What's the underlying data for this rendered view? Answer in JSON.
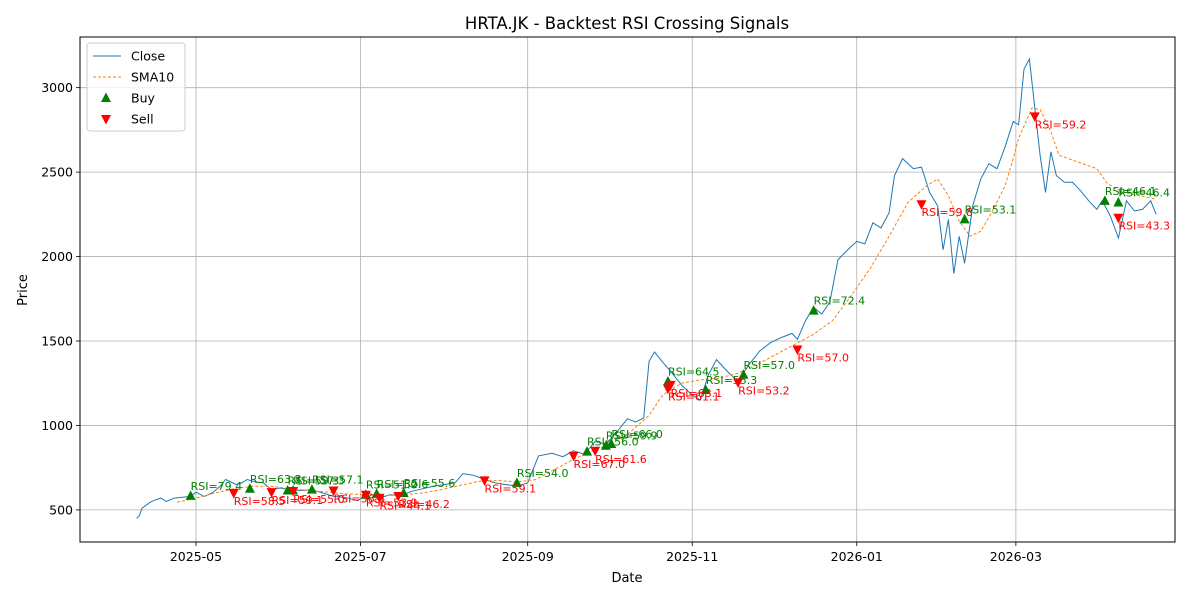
{
  "chart_data": {
    "type": "line",
    "title": "HRTA.JK - Backtest RSI Crossing Signals",
    "xlabel": "Date",
    "ylabel": "Price",
    "x_range": [
      "2025-03-19",
      "2026-04-29"
    ],
    "ylim": [
      310,
      3300
    ],
    "x_ticks": [
      {
        "date": "2025-05-01",
        "label": "2025-05"
      },
      {
        "date": "2025-07-01",
        "label": "2025-07"
      },
      {
        "date": "2025-09-01",
        "label": "2025-09"
      },
      {
        "date": "2025-11-01",
        "label": "2025-11"
      },
      {
        "date": "2026-01-01",
        "label": "2026-01"
      },
      {
        "date": "2026-03-01",
        "label": "2026-03"
      }
    ],
    "y_ticks": [
      500,
      1000,
      1500,
      2000,
      2500,
      3000
    ],
    "grid": true,
    "legend_position": "top-left",
    "legend": [
      {
        "key": "close",
        "label": "Close",
        "kind": "line",
        "color": "#1f77b4"
      },
      {
        "key": "sma",
        "label": "SMA10",
        "kind": "dashed",
        "color": "#ff7f0e"
      },
      {
        "key": "buy",
        "label": "Buy",
        "kind": "up-marker",
        "color": "#008000"
      },
      {
        "key": "sell",
        "label": "Sell",
        "kind": "down-marker",
        "color": "#ff0000"
      }
    ],
    "series": [
      {
        "name": "Close",
        "color": "#1f77b4",
        "points": [
          [
            "2025-04-09",
            450
          ],
          [
            "2025-04-10",
            465
          ],
          [
            "2025-04-11",
            510
          ],
          [
            "2025-04-14",
            545
          ],
          [
            "2025-04-16",
            560
          ],
          [
            "2025-04-18",
            570
          ],
          [
            "2025-04-20",
            550
          ],
          [
            "2025-04-23",
            570
          ],
          [
            "2025-04-26",
            575
          ],
          [
            "2025-04-29",
            580
          ],
          [
            "2025-05-01",
            605
          ],
          [
            "2025-05-04",
            580
          ],
          [
            "2025-05-07",
            600
          ],
          [
            "2025-05-10",
            640
          ],
          [
            "2025-05-12",
            680
          ],
          [
            "2025-05-14",
            665
          ],
          [
            "2025-05-16",
            650
          ],
          [
            "2025-05-18",
            660
          ],
          [
            "2025-05-20",
            680
          ],
          [
            "2025-05-23",
            665
          ],
          [
            "2025-05-26",
            660
          ],
          [
            "2025-05-29",
            620
          ],
          [
            "2025-06-01",
            630
          ],
          [
            "2025-06-05",
            620
          ],
          [
            "2025-06-09",
            615
          ],
          [
            "2025-06-13",
            620
          ],
          [
            "2025-06-17",
            600
          ],
          [
            "2025-06-21",
            580
          ],
          [
            "2025-06-25",
            575
          ],
          [
            "2025-06-30",
            555
          ],
          [
            "2025-07-04",
            600
          ],
          [
            "2025-07-08",
            570
          ],
          [
            "2025-07-12",
            590
          ],
          [
            "2025-07-16",
            585
          ],
          [
            "2025-07-20",
            610
          ],
          [
            "2025-07-24",
            625
          ],
          [
            "2025-07-28",
            640
          ],
          [
            "2025-08-01",
            650
          ],
          [
            "2025-08-05",
            660
          ],
          [
            "2025-08-08",
            715
          ],
          [
            "2025-08-12",
            705
          ],
          [
            "2025-08-16",
            680
          ],
          [
            "2025-08-20",
            660
          ],
          [
            "2025-08-24",
            650
          ],
          [
            "2025-08-28",
            640
          ],
          [
            "2025-09-01",
            660
          ],
          [
            "2025-09-05",
            820
          ],
          [
            "2025-09-10",
            835
          ],
          [
            "2025-09-14",
            815
          ],
          [
            "2025-09-18",
            850
          ],
          [
            "2025-09-22",
            830
          ],
          [
            "2025-09-26",
            905
          ],
          [
            "2025-09-30",
            890
          ],
          [
            "2025-10-04",
            960
          ],
          [
            "2025-10-08",
            1040
          ],
          [
            "2025-10-11",
            1020
          ],
          [
            "2025-10-14",
            1045
          ],
          [
            "2025-10-16",
            1380
          ],
          [
            "2025-10-18",
            1435
          ],
          [
            "2025-10-21",
            1375
          ],
          [
            "2025-10-24",
            1320
          ],
          [
            "2025-10-28",
            1240
          ],
          [
            "2025-11-01",
            1180
          ],
          [
            "2025-11-04",
            1150
          ],
          [
            "2025-11-07",
            1300
          ],
          [
            "2025-11-10",
            1390
          ],
          [
            "2025-11-14",
            1320
          ],
          [
            "2025-11-18",
            1260
          ],
          [
            "2025-11-22",
            1360
          ],
          [
            "2025-11-26",
            1440
          ],
          [
            "2025-11-30",
            1490
          ],
          [
            "2025-12-04",
            1520
          ],
          [
            "2025-12-08",
            1545
          ],
          [
            "2025-12-10",
            1510
          ],
          [
            "2025-12-13",
            1620
          ],
          [
            "2025-12-16",
            1700
          ],
          [
            "2025-12-19",
            1660
          ],
          [
            "2025-12-22",
            1730
          ],
          [
            "2025-12-25",
            1980
          ],
          [
            "2025-12-28",
            2030
          ],
          [
            "2026-01-01",
            2090
          ],
          [
            "2026-01-04",
            2075
          ],
          [
            "2026-01-07",
            2200
          ],
          [
            "2026-01-10",
            2170
          ],
          [
            "2026-01-13",
            2260
          ],
          [
            "2026-01-15",
            2480
          ],
          [
            "2026-01-18",
            2580
          ],
          [
            "2026-01-22",
            2520
          ],
          [
            "2026-01-25",
            2530
          ],
          [
            "2026-01-28",
            2380
          ],
          [
            "2026-01-31",
            2300
          ],
          [
            "2026-02-02",
            2040
          ],
          [
            "2026-02-04",
            2220
          ],
          [
            "2026-02-06",
            1900
          ],
          [
            "2026-02-08",
            2120
          ],
          [
            "2026-02-10",
            1960
          ],
          [
            "2026-02-13",
            2300
          ],
          [
            "2026-02-16",
            2460
          ],
          [
            "2026-02-19",
            2550
          ],
          [
            "2026-02-22",
            2520
          ],
          [
            "2026-02-25",
            2650
          ],
          [
            "2026-02-28",
            2800
          ],
          [
            "2026-03-02",
            2780
          ],
          [
            "2026-03-04",
            3110
          ],
          [
            "2026-03-06",
            3170
          ],
          [
            "2026-03-08",
            2880
          ],
          [
            "2026-03-10",
            2600
          ],
          [
            "2026-03-12",
            2380
          ],
          [
            "2026-03-14",
            2620
          ],
          [
            "2026-03-16",
            2480
          ],
          [
            "2026-03-19",
            2440
          ],
          [
            "2026-03-22",
            2440
          ],
          [
            "2026-03-25",
            2390
          ],
          [
            "2026-03-28",
            2330
          ],
          [
            "2026-03-31",
            2280
          ],
          [
            "2026-04-02",
            2330
          ],
          [
            "2026-04-05",
            2240
          ],
          [
            "2026-04-08",
            2110
          ],
          [
            "2026-04-11",
            2330
          ],
          [
            "2026-04-14",
            2270
          ],
          [
            "2026-04-17",
            2280
          ],
          [
            "2026-04-20",
            2330
          ],
          [
            "2026-04-22",
            2250
          ]
        ]
      },
      {
        "name": "SMA10",
        "color": "#ff7f0e",
        "points": [
          [
            "2025-04-24",
            545
          ],
          [
            "2025-05-01",
            570
          ],
          [
            "2025-05-08",
            600
          ],
          [
            "2025-05-15",
            625
          ],
          [
            "2025-05-22",
            640
          ],
          [
            "2025-05-29",
            640
          ],
          [
            "2025-06-05",
            625
          ],
          [
            "2025-06-12",
            615
          ],
          [
            "2025-06-19",
            605
          ],
          [
            "2025-06-26",
            595
          ],
          [
            "2025-07-03",
            590
          ],
          [
            "2025-07-10",
            585
          ],
          [
            "2025-07-17",
            590
          ],
          [
            "2025-07-24",
            600
          ],
          [
            "2025-07-31",
            620
          ],
          [
            "2025-08-07",
            645
          ],
          [
            "2025-08-14",
            670
          ],
          [
            "2025-08-21",
            675
          ],
          [
            "2025-08-28",
            665
          ],
          [
            "2025-09-04",
            680
          ],
          [
            "2025-09-11",
            740
          ],
          [
            "2025-09-18",
            800
          ],
          [
            "2025-09-25",
            850
          ],
          [
            "2025-10-02",
            890
          ],
          [
            "2025-10-09",
            960
          ],
          [
            "2025-10-16",
            1060
          ],
          [
            "2025-10-21",
            1180
          ],
          [
            "2025-10-28",
            1250
          ],
          [
            "2025-11-04",
            1270
          ],
          [
            "2025-11-11",
            1280
          ],
          [
            "2025-11-18",
            1310
          ],
          [
            "2025-11-25",
            1360
          ],
          [
            "2025-12-02",
            1420
          ],
          [
            "2025-12-09",
            1480
          ],
          [
            "2025-12-16",
            1540
          ],
          [
            "2025-12-23",
            1620
          ],
          [
            "2025-12-30",
            1770
          ],
          [
            "2026-01-06",
            1930
          ],
          [
            "2026-01-13",
            2120
          ],
          [
            "2026-01-20",
            2320
          ],
          [
            "2026-01-27",
            2420
          ],
          [
            "2026-01-31",
            2460
          ],
          [
            "2026-02-04",
            2360
          ],
          [
            "2026-02-08",
            2210
          ],
          [
            "2026-02-12",
            2120
          ],
          [
            "2026-02-16",
            2150
          ],
          [
            "2026-02-20",
            2260
          ],
          [
            "2026-02-25",
            2420
          ],
          [
            "2026-02-28",
            2580
          ],
          [
            "2026-03-02",
            2700
          ],
          [
            "2026-03-07",
            2880
          ],
          [
            "2026-03-10",
            2870
          ],
          [
            "2026-03-14",
            2740
          ],
          [
            "2026-03-17",
            2600
          ],
          [
            "2026-03-24",
            2560
          ],
          [
            "2026-03-31",
            2520
          ],
          [
            "2026-04-04",
            2430
          ],
          [
            "2026-04-10",
            2380
          ],
          [
            "2026-04-16",
            2360
          ],
          [
            "2026-04-22",
            2340
          ]
        ]
      }
    ],
    "buy_signals": [
      {
        "date": "2025-04-29",
        "price": 583,
        "label": "RSI=79.4"
      },
      {
        "date": "2025-05-21",
        "price": 625,
        "label": "RSI=63.3"
      },
      {
        "date": "2025-06-04",
        "price": 615,
        "label": "RSI=59.3"
      },
      {
        "date": "2025-06-06",
        "price": 615,
        "label": "RSI=57.3"
      },
      {
        "date": "2025-06-13",
        "price": 620,
        "label": "RSI=57.1"
      },
      {
        "date": "2025-07-03",
        "price": 590,
        "label": "RSI=51.0"
      },
      {
        "date": "2025-07-07",
        "price": 595,
        "label": "RSI=52.6"
      },
      {
        "date": "2025-07-17",
        "price": 600,
        "label": "RSI=55.6"
      },
      {
        "date": "2025-08-28",
        "price": 660,
        "label": "RSI=54.0"
      },
      {
        "date": "2025-09-23",
        "price": 845,
        "label": "RSI=56.0"
      },
      {
        "date": "2025-09-30",
        "price": 880,
        "label": "RSI=59.9"
      },
      {
        "date": "2025-10-02",
        "price": 890,
        "label": "RSI=66.0"
      },
      {
        "date": "2025-10-23",
        "price": 1260,
        "label": "RSI=64.5"
      },
      {
        "date": "2025-11-06",
        "price": 1210,
        "label": "RSI=55.3"
      },
      {
        "date": "2025-11-20",
        "price": 1300,
        "label": "RSI=57.0"
      },
      {
        "date": "2025-12-16",
        "price": 1680,
        "label": "RSI=72.4"
      },
      {
        "date": "2026-02-10",
        "price": 2220,
        "label": "RSI=53.1"
      },
      {
        "date": "2026-04-03",
        "price": 2330,
        "label": "RSI=46.1"
      },
      {
        "date": "2026-04-08",
        "price": 2320,
        "label": "RSI=46.4"
      }
    ],
    "sell_signals": [
      {
        "date": "2025-05-15",
        "price": 600,
        "label": "RSI=58.5"
      },
      {
        "date": "2025-05-29",
        "price": 605,
        "label": "RSI=59.1"
      },
      {
        "date": "2025-06-06",
        "price": 612,
        "label": "RSI=55.0"
      },
      {
        "date": "2025-06-21",
        "price": 615,
        "label": "RSI=56.8"
      },
      {
        "date": "2025-07-03",
        "price": 590,
        "label": "RSI=53.9"
      },
      {
        "date": "2025-07-08",
        "price": 572,
        "label": "RSI=44.1"
      },
      {
        "date": "2025-07-15",
        "price": 582,
        "label": "RSI=46.2"
      },
      {
        "date": "2025-08-16",
        "price": 675,
        "label": "RSI=59.1"
      },
      {
        "date": "2025-09-18",
        "price": 820,
        "label": "RSI=67.0"
      },
      {
        "date": "2025-09-26",
        "price": 850,
        "label": "RSI=61.6"
      },
      {
        "date": "2025-10-23",
        "price": 1218,
        "label": "RSI=61.1"
      },
      {
        "date": "2025-10-24",
        "price": 1240,
        "label": "RSI=63.1"
      },
      {
        "date": "2025-11-18",
        "price": 1255,
        "label": "RSI=53.2"
      },
      {
        "date": "2025-12-10",
        "price": 1450,
        "label": "RSI=57.0"
      },
      {
        "date": "2026-01-25",
        "price": 2310,
        "label": "RSI=59.8"
      },
      {
        "date": "2026-03-08",
        "price": 2830,
        "label": "RSI=59.2"
      },
      {
        "date": "2026-04-08",
        "price": 2230,
        "label": "RSI=43.3"
      }
    ]
  }
}
